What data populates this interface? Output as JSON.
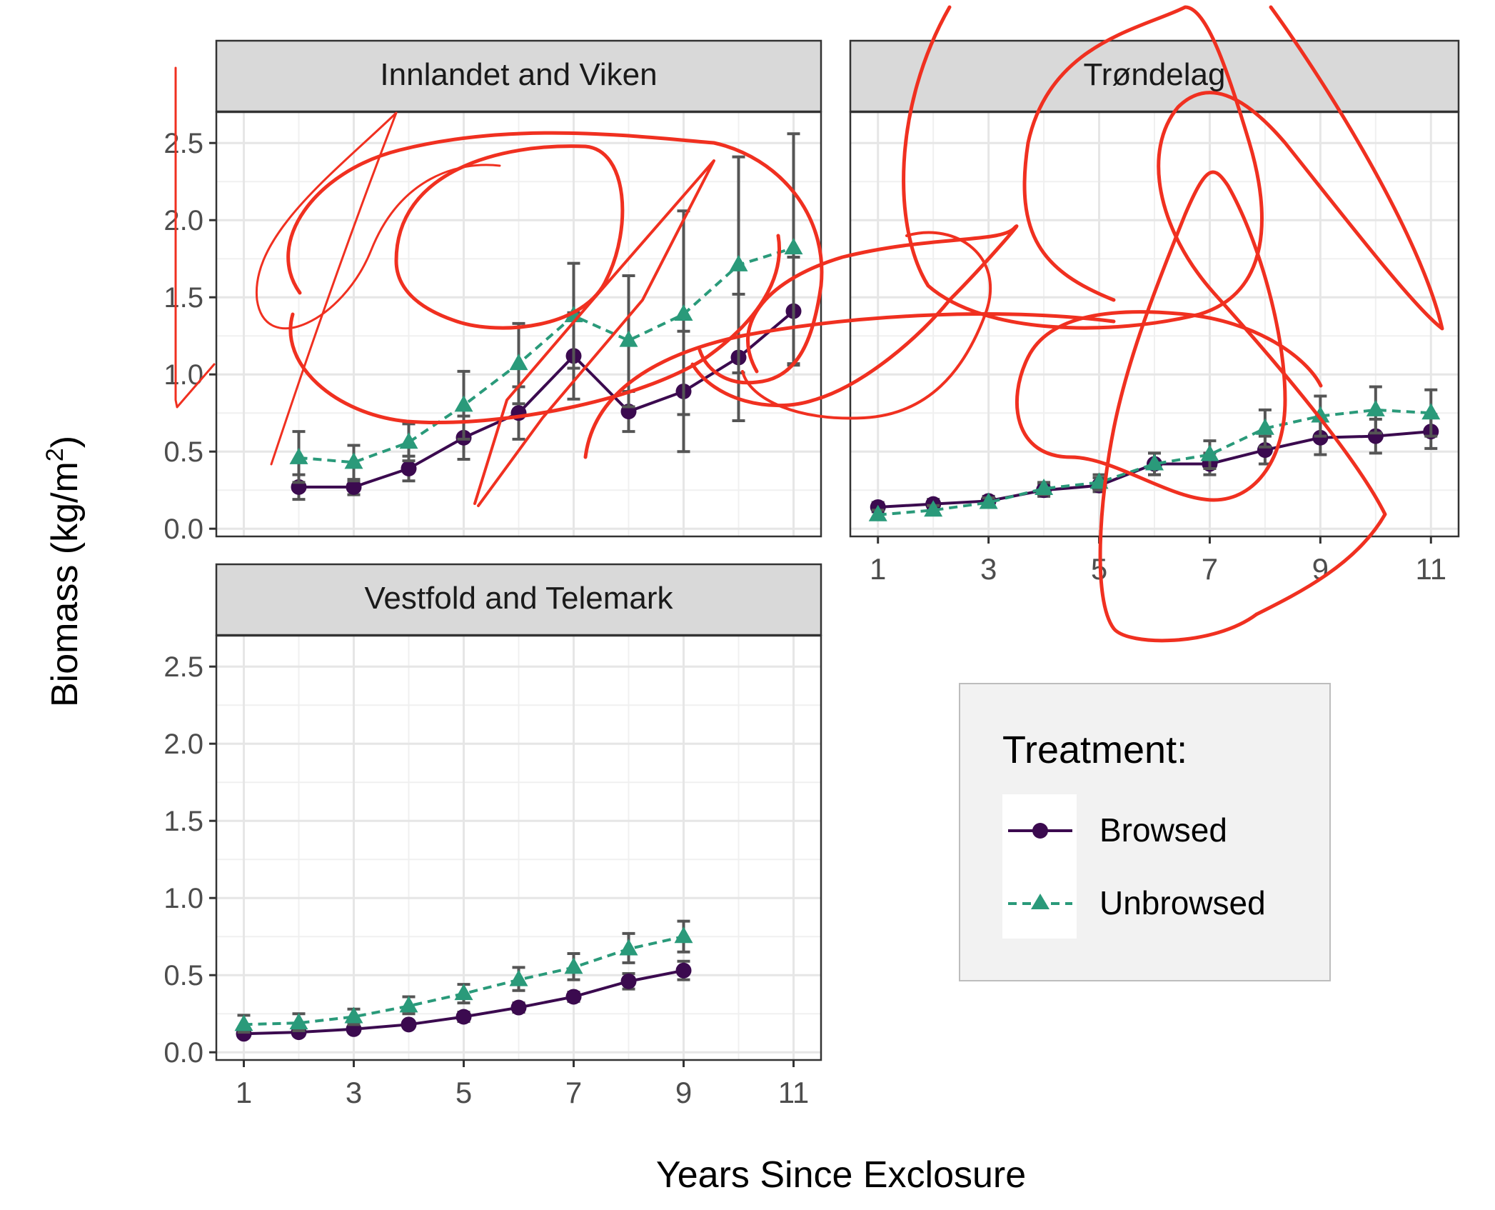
{
  "chart_data": [
    {
      "type": "line",
      "title": "Innlandet and Viken",
      "xlabel": "Years Since Exclosure",
      "ylabel": "Biomass  (kg/m²)",
      "xlim": [
        0.5,
        11.5
      ],
      "ylim": [
        -0.05,
        2.7
      ],
      "xticks": [
        "1",
        "3",
        "5",
        "7",
        "9",
        "11"
      ],
      "yticks": [
        "0.0",
        "0.5",
        "1.0",
        "1.5",
        "2.0",
        "2.5"
      ],
      "xticks_shown": false,
      "grid": true,
      "series": [
        {
          "name": "Browsed",
          "x": [
            2,
            3,
            4,
            5,
            6,
            7,
            8,
            9,
            10,
            11
          ],
          "y": [
            0.27,
            0.27,
            0.39,
            0.59,
            0.75,
            1.12,
            0.76,
            0.89,
            1.11,
            1.41
          ],
          "err_low": [
            0.19,
            0.22,
            0.31,
            0.45,
            0.58,
            0.84,
            0.63,
            0.5,
            0.7,
            1.06
          ],
          "err_high": [
            0.35,
            0.32,
            0.47,
            0.73,
            0.92,
            1.4,
            0.89,
            1.28,
            1.52,
            1.76
          ]
        },
        {
          "name": "Unbrowsed",
          "x": [
            2,
            3,
            4,
            5,
            6,
            7,
            8,
            9,
            10,
            11
          ],
          "y": [
            0.46,
            0.43,
            0.56,
            0.8,
            1.07,
            1.38,
            1.22,
            1.39,
            1.71,
            1.82
          ],
          "err_low": [
            0.3,
            0.31,
            0.44,
            0.58,
            0.81,
            1.04,
            0.79,
            0.74,
            1.01,
            1.07
          ],
          "err_high": [
            0.63,
            0.54,
            0.68,
            1.02,
            1.33,
            1.72,
            1.64,
            2.06,
            2.41,
            2.56
          ]
        }
      ]
    },
    {
      "type": "line",
      "title": "Trøndelag",
      "xlim": [
        0.5,
        11.5
      ],
      "ylim": [
        -0.05,
        2.7
      ],
      "xticks": [
        "1",
        "3",
        "5",
        "7",
        "9",
        "11"
      ],
      "yticks_shown": false,
      "grid": true,
      "series": [
        {
          "name": "Browsed",
          "x": [
            1,
            2,
            3,
            4,
            5,
            6,
            7,
            8,
            9,
            10,
            11
          ],
          "y": [
            0.14,
            0.16,
            0.18,
            0.25,
            0.28,
            0.42,
            0.42,
            0.51,
            0.59,
            0.6,
            0.63
          ],
          "err_low": [
            0.11,
            0.13,
            0.15,
            0.21,
            0.24,
            0.35,
            0.35,
            0.42,
            0.48,
            0.49,
            0.52
          ],
          "err_high": [
            0.17,
            0.19,
            0.21,
            0.29,
            0.33,
            0.49,
            0.49,
            0.6,
            0.7,
            0.71,
            0.74
          ]
        },
        {
          "name": "Unbrowsed",
          "x": [
            1,
            2,
            3,
            4,
            5,
            6,
            7,
            8,
            9,
            10,
            11
          ],
          "y": [
            0.09,
            0.12,
            0.17,
            0.26,
            0.3,
            0.42,
            0.48,
            0.65,
            0.73,
            0.77,
            0.75
          ],
          "err_low": [
            0.06,
            0.09,
            0.14,
            0.22,
            0.25,
            0.35,
            0.39,
            0.53,
            0.6,
            0.62,
            0.6
          ],
          "err_high": [
            0.12,
            0.15,
            0.2,
            0.3,
            0.35,
            0.49,
            0.57,
            0.77,
            0.86,
            0.92,
            0.9
          ]
        }
      ]
    },
    {
      "type": "line",
      "title": "Vestfold and Telemark",
      "xlim": [
        0.5,
        11.5
      ],
      "ylim": [
        -0.05,
        2.7
      ],
      "xticks": [
        "1",
        "3",
        "5",
        "7",
        "9",
        "11"
      ],
      "yticks": [
        "0.0",
        "0.5",
        "1.0",
        "1.5",
        "2.0",
        "2.5"
      ],
      "grid": true,
      "series": [
        {
          "name": "Browsed",
          "x": [
            1,
            2,
            3,
            4,
            5,
            6,
            7,
            8,
            9
          ],
          "y": [
            0.12,
            0.13,
            0.15,
            0.18,
            0.23,
            0.29,
            0.36,
            0.46,
            0.53
          ],
          "err_low": [
            0.1,
            0.11,
            0.13,
            0.16,
            0.2,
            0.26,
            0.33,
            0.41,
            0.47
          ],
          "err_high": [
            0.14,
            0.15,
            0.17,
            0.2,
            0.26,
            0.32,
            0.39,
            0.51,
            0.59
          ]
        },
        {
          "name": "Unbrowsed",
          "x": [
            1,
            2,
            3,
            4,
            5,
            6,
            7,
            8,
            9
          ],
          "y": [
            0.18,
            0.19,
            0.23,
            0.3,
            0.38,
            0.47,
            0.55,
            0.67,
            0.75
          ],
          "err_low": [
            0.13,
            0.14,
            0.18,
            0.25,
            0.32,
            0.4,
            0.47,
            0.58,
            0.65
          ],
          "err_high": [
            0.24,
            0.25,
            0.28,
            0.36,
            0.44,
            0.55,
            0.64,
            0.77,
            0.85
          ]
        }
      ]
    }
  ],
  "axis_title_x": "Years Since Exclosure",
  "axis_title_y_main": "Biomass  (kg/m",
  "axis_title_y_sup": "2",
  "axis_title_y_close": ")",
  "legend": {
    "title": "Treatment:",
    "items": [
      {
        "label": "Browsed",
        "color": "#3b0a4f",
        "marker": "circle",
        "line": "solid"
      },
      {
        "label": "Unbrowsed",
        "color": "#2a9a7a",
        "marker": "triangle",
        "line": "dashed"
      }
    ]
  },
  "colors": {
    "browsed": "#3b0a4f",
    "unbrowsed": "#2a9a7a",
    "error_bar": "#555555",
    "strip": "#d9d9d9",
    "grid": "#e6e6e6",
    "annotation": "#f03020"
  },
  "annotations": {
    "type": "red freehand scribbles overlaid on the chart"
  }
}
